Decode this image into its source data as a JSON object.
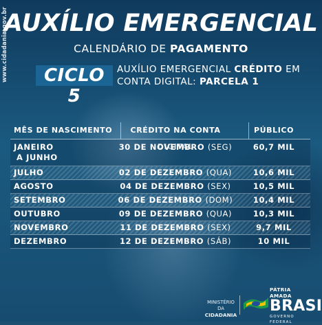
{
  "side_url": "www.cidadania.gov.br",
  "title": "AUXÍLIO EMERGENCIAL",
  "subtitle": {
    "part1": "CALENDÁRIO DE ",
    "part2": "PAGAMENTO"
  },
  "cycle": {
    "badge": "CICLO 5",
    "line1_a": "AUXÍLIO EMERGENCIAL ",
    "line1_b": "CRÉDITO",
    "line1_c": " EM",
    "line2_a": "CONTA DIGITAL: ",
    "line2_b": "PARCELA 1"
  },
  "table": {
    "headers": {
      "birth_month": "MÊS DE NASCIMENTO",
      "credit": "CRÉDITO NA CONTA DIGITAL",
      "public": "PÚBLICO"
    },
    "rows": [
      {
        "month_l1": "JANEIRO",
        "month_l2": "A JUNHO",
        "date": "30 DE NOVEMBRO",
        "weekday": "(SEG)",
        "public": "60,7 MIL"
      },
      {
        "month": "JULHO",
        "date": "02 DE DEZEMBRO",
        "weekday": "(QUA)",
        "public": "10,6 MIL"
      },
      {
        "month": "AGOSTO",
        "date": "04 DE DEZEMBRO",
        "weekday": "(SEX)",
        "public": "10,5 MIL"
      },
      {
        "month": "SETEMBRO",
        "date": "06 DE DEZEMBRO",
        "weekday": "(DOM)",
        "public": "10,4 MIL"
      },
      {
        "month": "OUTUBRO",
        "date": "09 DE DEZEMBRO",
        "weekday": "(QUA)",
        "public": "10,3 MIL"
      },
      {
        "month": "NOVEMBRO",
        "date": "11 DE DEZEMBRO",
        "weekday": "(SEX)",
        "public": "9,7 MIL"
      },
      {
        "month": "DEZEMBRO",
        "date": "12 DE DEZEMBRO",
        "weekday": "(SÁB)",
        "public": "10 MIL"
      }
    ]
  },
  "footer": {
    "ministry_l1": "MINISTÉRIO DA",
    "ministry_l2": "CIDADANIA",
    "brand_l1": "PÁTRIA AMADA",
    "brand_l2": "BRASIL",
    "brand_l3": "GOVERNO FEDERAL"
  },
  "colors": {
    "background": "#1d4f72",
    "badge": "#1e6ea0",
    "flag_green": "#1a9a4a",
    "flag_yellow": "#f2c500",
    "flag_blue": "#1f4e9c"
  },
  "icons": {
    "logo": "brazil-flag-logo"
  }
}
